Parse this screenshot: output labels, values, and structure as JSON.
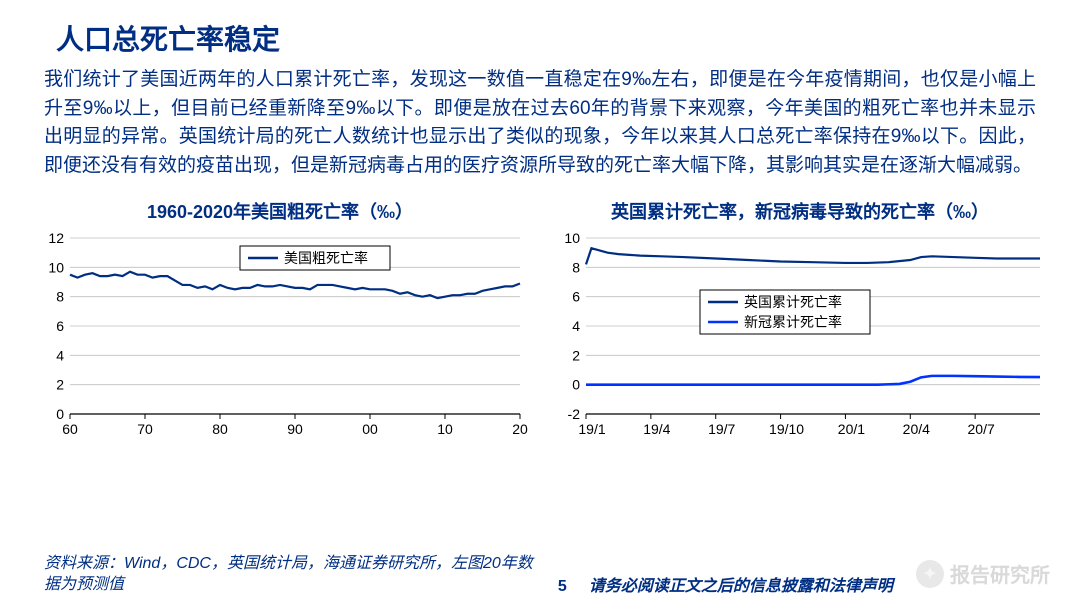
{
  "title": "人口总死亡率稳定",
  "body": "我们统计了美国近两年的人口累计死亡率，发现这一数值一直稳定在9‰左右，即便是在今年疫情期间，也仅是小幅上升至9‰以上，但目前已经重新降至9‰以下。即便是放在过去60年的背景下来观察，今年美国的粗死亡率也并未显示出明显的异常。英国统计局的死亡人数统计也显示出了类似的现象，今年以来其人口总死亡率保持在9‰以下。因此，即便还没有有效的疫苗出现，但是新冠病毒占用的医疗资源所导致的死亡率大幅下降，其影响其实是在逐渐大幅减弱。",
  "footer": {
    "source": "资料来源：Wind，CDC，英国统计局，海通证券研究所，左图20年数据为预测值",
    "page": "5",
    "disclaimer": "请务必阅读正文之后的信息披露和法律声明"
  },
  "watermark": "报告研究所",
  "chart1": {
    "title": "1960-2020年美国粗死亡率（‰）",
    "type": "line",
    "x_ticks": [
      "60",
      "70",
      "80",
      "90",
      "00",
      "10",
      "20"
    ],
    "x_range": [
      1960,
      2020
    ],
    "y_ticks": [
      0,
      2,
      4,
      6,
      8,
      10,
      12
    ],
    "y_range": [
      0,
      12
    ],
    "axis_color": "#000000",
    "grid_color": "#bfbfbf",
    "tick_fontsize": 14,
    "legend": {
      "label": "美国粗死亡率",
      "box_stroke": "#000000",
      "text_color": "#000000"
    },
    "series": [
      {
        "name": "us_crude_death",
        "color": "#002e82",
        "width": 2.2,
        "points": [
          [
            1960,
            9.5
          ],
          [
            1961,
            9.3
          ],
          [
            1962,
            9.5
          ],
          [
            1963,
            9.6
          ],
          [
            1964,
            9.4
          ],
          [
            1965,
            9.4
          ],
          [
            1966,
            9.5
          ],
          [
            1967,
            9.4
          ],
          [
            1968,
            9.7
          ],
          [
            1969,
            9.5
          ],
          [
            1970,
            9.5
          ],
          [
            1971,
            9.3
          ],
          [
            1972,
            9.4
          ],
          [
            1973,
            9.4
          ],
          [
            1974,
            9.1
          ],
          [
            1975,
            8.8
          ],
          [
            1976,
            8.8
          ],
          [
            1977,
            8.6
          ],
          [
            1978,
            8.7
          ],
          [
            1979,
            8.5
          ],
          [
            1980,
            8.8
          ],
          [
            1981,
            8.6
          ],
          [
            1982,
            8.5
          ],
          [
            1983,
            8.6
          ],
          [
            1984,
            8.6
          ],
          [
            1985,
            8.8
          ],
          [
            1986,
            8.7
          ],
          [
            1987,
            8.7
          ],
          [
            1988,
            8.8
          ],
          [
            1989,
            8.7
          ],
          [
            1990,
            8.6
          ],
          [
            1991,
            8.6
          ],
          [
            1992,
            8.5
          ],
          [
            1993,
            8.8
          ],
          [
            1994,
            8.8
          ],
          [
            1995,
            8.8
          ],
          [
            1996,
            8.7
          ],
          [
            1997,
            8.6
          ],
          [
            1998,
            8.5
          ],
          [
            1999,
            8.6
          ],
          [
            2000,
            8.5
          ],
          [
            2001,
            8.5
          ],
          [
            2002,
            8.5
          ],
          [
            2003,
            8.4
          ],
          [
            2004,
            8.2
          ],
          [
            2005,
            8.3
          ],
          [
            2006,
            8.1
          ],
          [
            2007,
            8.0
          ],
          [
            2008,
            8.1
          ],
          [
            2009,
            7.9
          ],
          [
            2010,
            8.0
          ],
          [
            2011,
            8.1
          ],
          [
            2012,
            8.1
          ],
          [
            2013,
            8.2
          ],
          [
            2014,
            8.2
          ],
          [
            2015,
            8.4
          ],
          [
            2016,
            8.5
          ],
          [
            2017,
            8.6
          ],
          [
            2018,
            8.7
          ],
          [
            2019,
            8.7
          ],
          [
            2020,
            8.9
          ]
        ]
      }
    ]
  },
  "chart2": {
    "title": "英国累计死亡率，新冠病毒导致的死亡率（‰）",
    "type": "line",
    "x_labels": [
      "19/1",
      "19/4",
      "19/7",
      "19/10",
      "20/1",
      "20/4",
      "20/7"
    ],
    "x_idx_range": [
      0,
      84
    ],
    "x_tick_idx": [
      0,
      12,
      24,
      36,
      48,
      60,
      72
    ],
    "y_ticks": [
      -2,
      0,
      2,
      4,
      6,
      8,
      10
    ],
    "y_range": [
      -2,
      10
    ],
    "axis_color": "#000000",
    "grid_color": "#bfbfbf",
    "tick_fontsize": 14,
    "legend": [
      {
        "label": "英国累计死亡率",
        "color": "#002e82"
      },
      {
        "label": "新冠累计死亡率",
        "color": "#0033ff"
      }
    ],
    "series": [
      {
        "name": "uk_total",
        "color": "#002e82",
        "width": 2.2,
        "points": [
          [
            0,
            8.2
          ],
          [
            1,
            9.3
          ],
          [
            2,
            9.2
          ],
          [
            3,
            9.1
          ],
          [
            4,
            9.0
          ],
          [
            6,
            8.9
          ],
          [
            8,
            8.85
          ],
          [
            10,
            8.8
          ],
          [
            14,
            8.75
          ],
          [
            18,
            8.7
          ],
          [
            24,
            8.6
          ],
          [
            30,
            8.5
          ],
          [
            36,
            8.4
          ],
          [
            42,
            8.35
          ],
          [
            48,
            8.3
          ],
          [
            52,
            8.3
          ],
          [
            56,
            8.35
          ],
          [
            60,
            8.5
          ],
          [
            62,
            8.7
          ],
          [
            64,
            8.75
          ],
          [
            68,
            8.7
          ],
          [
            72,
            8.65
          ],
          [
            76,
            8.6
          ],
          [
            80,
            8.6
          ],
          [
            84,
            8.6
          ]
        ]
      },
      {
        "name": "uk_covid",
        "color": "#0033ff",
        "width": 2.6,
        "points": [
          [
            0,
            0.0
          ],
          [
            48,
            0.0
          ],
          [
            54,
            0.0
          ],
          [
            58,
            0.05
          ],
          [
            60,
            0.2
          ],
          [
            62,
            0.5
          ],
          [
            64,
            0.6
          ],
          [
            68,
            0.6
          ],
          [
            72,
            0.58
          ],
          [
            76,
            0.55
          ],
          [
            80,
            0.53
          ],
          [
            84,
            0.52
          ]
        ]
      }
    ]
  }
}
